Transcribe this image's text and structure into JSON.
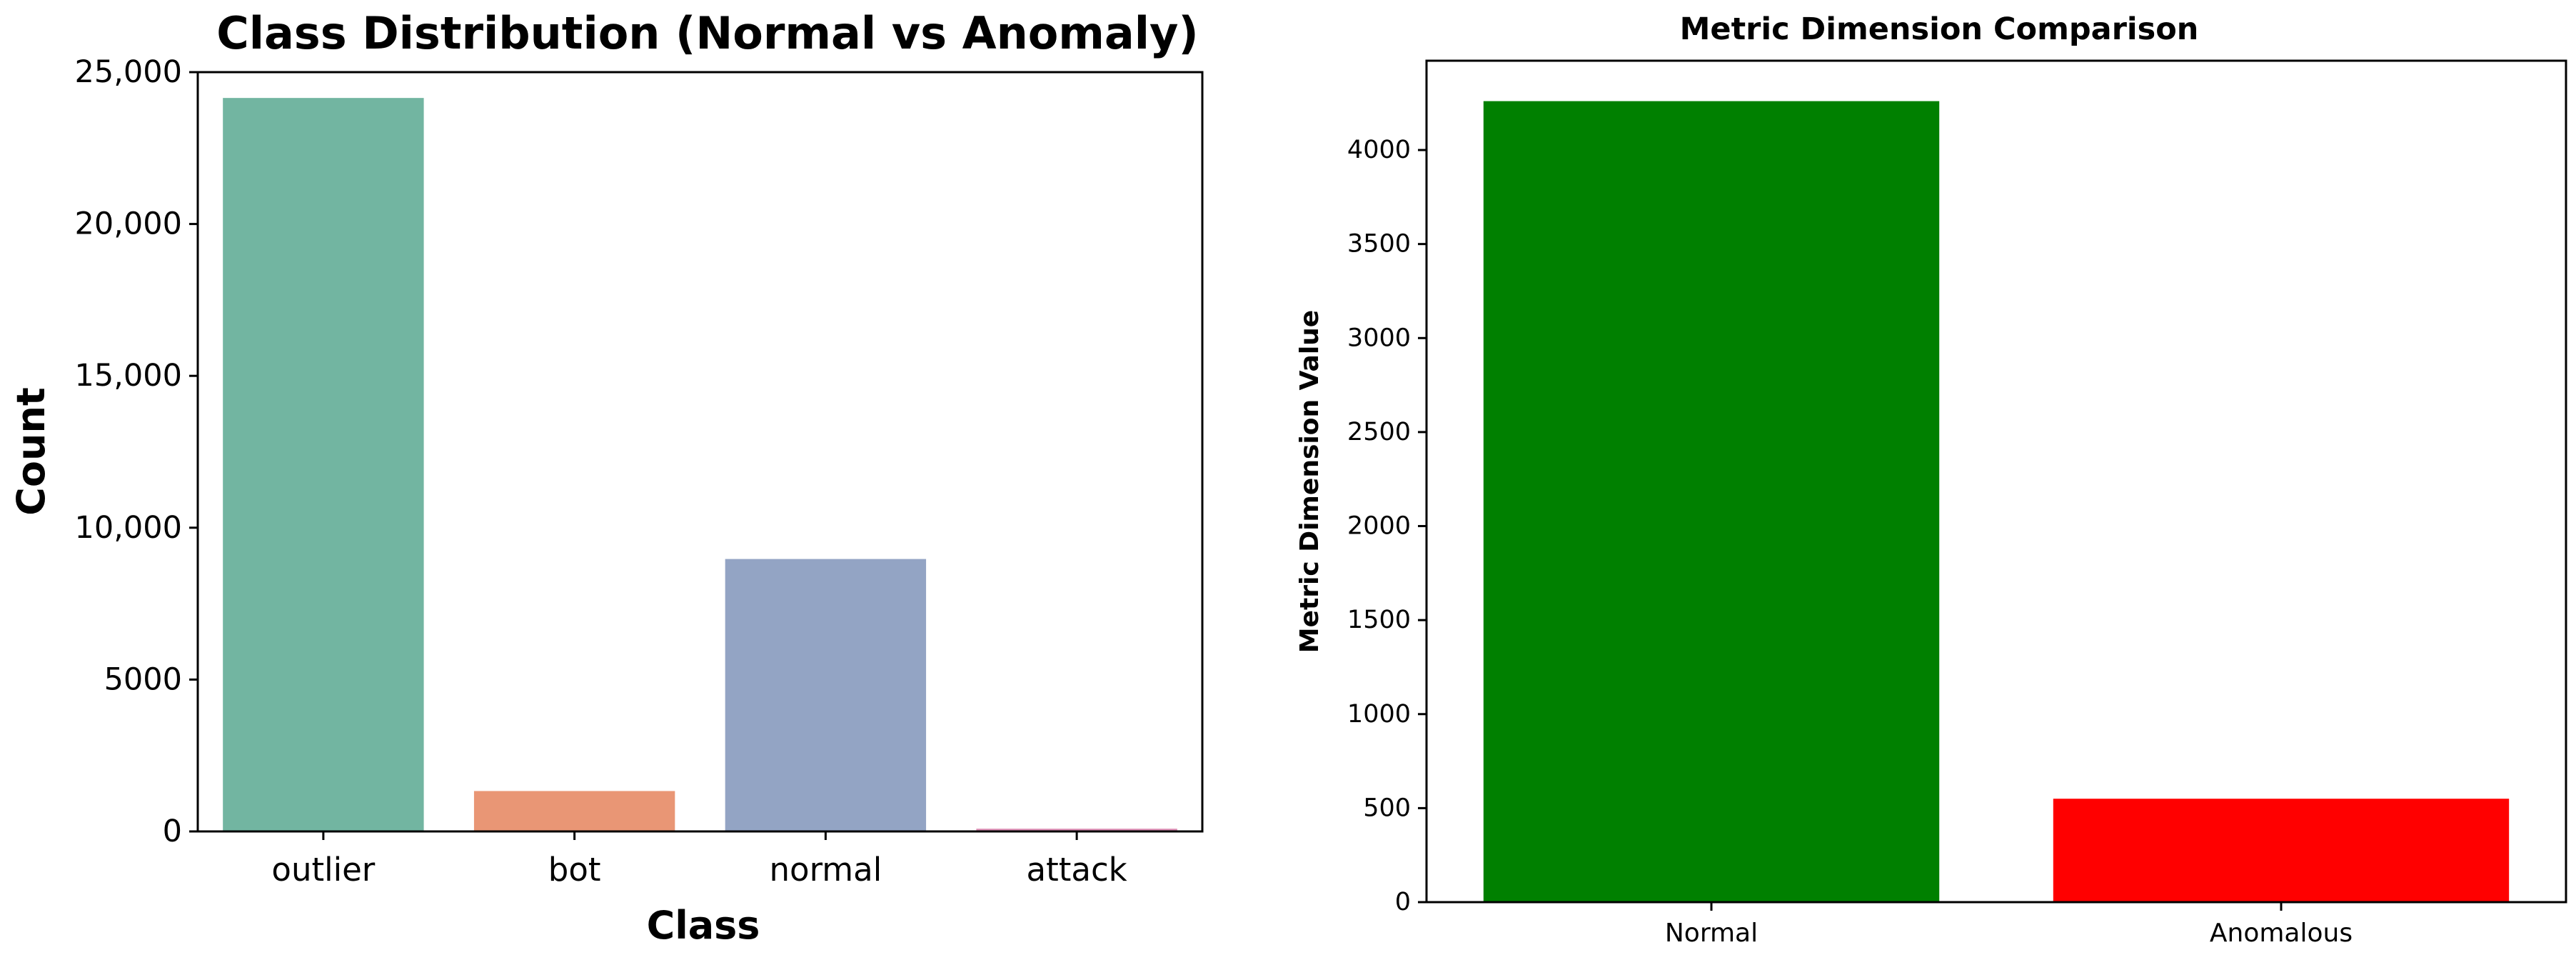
{
  "chart_data": [
    {
      "type": "bar",
      "title": "Class Distribution (Normal vs Anomaly)",
      "xlabel": "Class",
      "ylabel": "Count",
      "categories": [
        "outlier",
        "bot",
        "normal",
        "attack"
      ],
      "values": [
        24150,
        1330,
        8970,
        90
      ],
      "colors": [
        "#72b5a1",
        "#e99675",
        "#93a4c4",
        "#dc8fb5"
      ],
      "ylim": [
        0,
        25000
      ],
      "yticks": [
        0,
        5000,
        10000,
        15000,
        20000,
        25000
      ],
      "ytick_labels": [
        "0",
        "5000",
        "10,000",
        "15,000",
        "20,000",
        "25,000"
      ],
      "grid": false,
      "legend": false
    },
    {
      "type": "bar",
      "title": "Metric Dimension Comparison",
      "xlabel": "",
      "ylabel": "Metric Dimension Value",
      "categories": [
        "Normal",
        "Anomalous"
      ],
      "values": [
        4260,
        550
      ],
      "colors": [
        "#008000",
        "#ff0000"
      ],
      "ylim": [
        0,
        4475
      ],
      "yticks": [
        0,
        500,
        1000,
        1500,
        2000,
        2500,
        3000,
        3500,
        4000
      ],
      "ytick_labels": [
        "0",
        "500",
        "1000",
        "1500",
        "2000",
        "2500",
        "3000",
        "3500",
        "4000"
      ],
      "grid": false,
      "legend": false
    }
  ]
}
